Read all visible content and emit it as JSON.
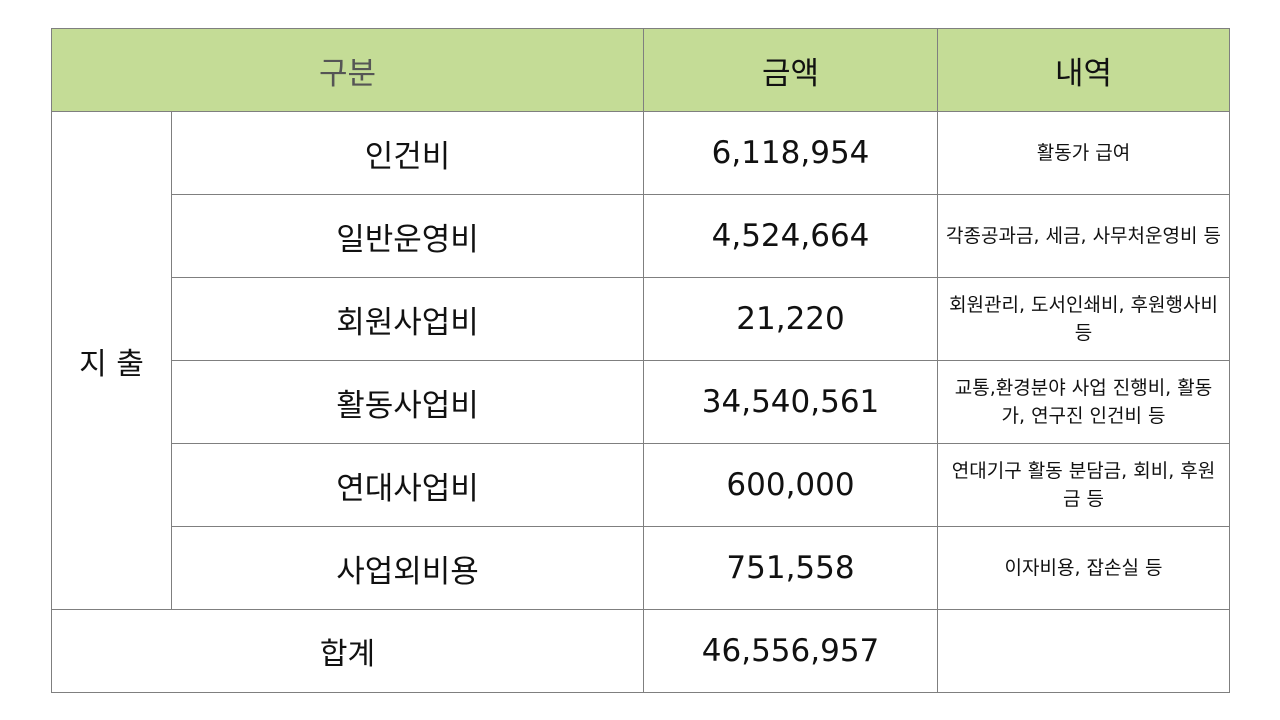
{
  "header": {
    "category": "구분",
    "amount": "금액",
    "detail": "내역"
  },
  "section_label": "지 출",
  "rows": [
    {
      "item": "인건비",
      "amount": "6,118,954",
      "detail": "활동가 급여"
    },
    {
      "item": "일반운영비",
      "amount": "4,524,664",
      "detail": "각종공과금, 세금, 사무처운영비 등"
    },
    {
      "item": "회원사업비",
      "amount": "21,220",
      "detail": "회원관리, 도서인쇄비, 후원행사비 등"
    },
    {
      "item": "활동사업비",
      "amount": "34,540,561",
      "detail": "교통,환경분야 사업 진행비, 활동가, 연구진 인건비 등"
    },
    {
      "item": "연대사업비",
      "amount": "600,000",
      "detail": "연대기구 활동 분담금, 회비, 후원금 등"
    },
    {
      "item": "사업외비용",
      "amount": "751,558",
      "detail": "이자비용, 잡손실 등"
    }
  ],
  "total": {
    "label": "합계",
    "amount": "46,556,957",
    "detail": ""
  },
  "colors": {
    "header_background": "#c4dc96",
    "border": "#7f7f7f"
  }
}
